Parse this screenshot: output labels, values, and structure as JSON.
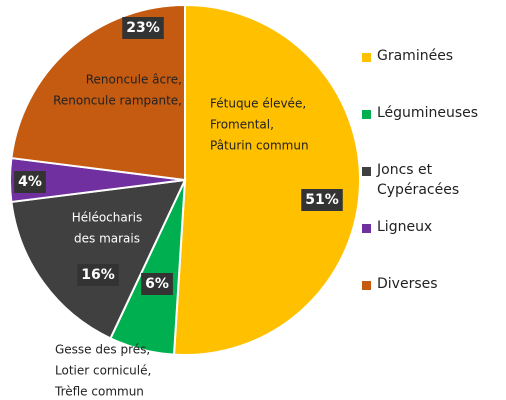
{
  "chart_data": {
    "type": "pie",
    "categories": [
      "Graminées",
      "Légumineuses",
      "Joncs et Cypéracées",
      "Ligneux",
      "Diverses"
    ],
    "values": [
      51,
      6,
      16,
      4,
      23
    ],
    "value_labels": [
      "51%",
      "6%",
      "16%",
      "4%",
      "23%"
    ],
    "colors": [
      "#ffc000",
      "#00b050",
      "#404040",
      "#7030a0",
      "#c55a11"
    ],
    "slice_notes": [
      [
        "Fétuque élevée,",
        "Fromental,",
        "Pâturin commun"
      ],
      [
        "Gesse des prés,",
        "Lotier corniculé,",
        "Trèfle commun"
      ],
      [
        "Héléocharis",
        "des marais"
      ],
      null,
      [
        "Renoncule âcre,",
        "Renoncule rampante,"
      ]
    ],
    "legend": "right"
  }
}
